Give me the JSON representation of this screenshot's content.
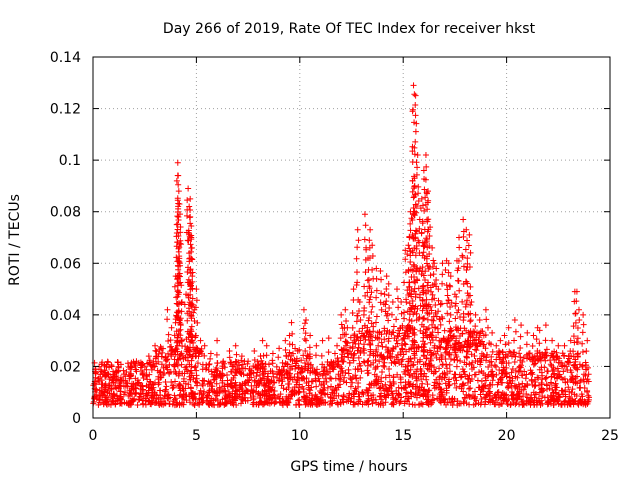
{
  "chart_data": {
    "type": "scatter",
    "title": "Day 266 of 2019, Rate Of TEC Index for receiver hkst",
    "xlabel": "GPS time / hours",
    "ylabel": "ROTI / TECUs",
    "xlim": [
      0,
      25
    ],
    "ylim": [
      0,
      0.14
    ],
    "x_ticks": [
      0,
      5,
      10,
      15,
      20,
      25
    ],
    "x_tick_labels": [
      "0",
      "5",
      "10",
      "15",
      "20",
      "25"
    ],
    "y_ticks": [
      0,
      0.02,
      0.04,
      0.06,
      0.08,
      0.1,
      0.12,
      0.14
    ],
    "y_tick_labels": [
      "0",
      "0.02",
      "0.04",
      "0.06",
      "0.08",
      "0.1",
      "0.12",
      "0.14"
    ],
    "grid": true,
    "marker": "+",
    "color": "#ff0000",
    "series": [
      {
        "name": "ROTI",
        "x": [
          0.1,
          0.3,
          0.6,
          0.9,
          1.2,
          1.5,
          1.8,
          2.1,
          2.4,
          2.7,
          3.0,
          3.3,
          3.6,
          3.8,
          4.0,
          4.05,
          4.1,
          4.15,
          4.2,
          4.3,
          4.5,
          4.6,
          4.7,
          4.75,
          4.8,
          4.9,
          5.0,
          5.2,
          5.4,
          5.7,
          6.0,
          6.3,
          6.6,
          6.9,
          7.2,
          7.5,
          7.8,
          8.1,
          8.4,
          8.7,
          9.0,
          9.3,
          9.6,
          9.9,
          10.2,
          10.5,
          10.8,
          11.1,
          11.4,
          11.7,
          12.0,
          12.3,
          12.6,
          12.9,
          13.1,
          13.3,
          13.5,
          13.7,
          13.9,
          14.1,
          14.3,
          14.5,
          14.7,
          14.9,
          15.1,
          15.3,
          15.45,
          15.5,
          15.6,
          15.7,
          15.8,
          15.9,
          16.0,
          16.1,
          16.2,
          16.3,
          16.5,
          16.7,
          16.9,
          17.1,
          17.3,
          17.5,
          17.7,
          17.9,
          18.1,
          18.3,
          18.5,
          18.7,
          18.9,
          19.1,
          19.3,
          19.5,
          19.7,
          19.9,
          20.1,
          20.4,
          20.7,
          21.0,
          21.3,
          21.6,
          21.9,
          22.2,
          22.5,
          22.8,
          23.1,
          23.3,
          23.5,
          23.7,
          23.9,
          4.12,
          4.18,
          4.22,
          4.65,
          4.7,
          4.78,
          8.2,
          9.5,
          10.3,
          11.8,
          12.2,
          12.8,
          13.15,
          13.4,
          14.2,
          15.25,
          15.35,
          15.55,
          15.95,
          16.15,
          16.4,
          16.6,
          16.8,
          17.2,
          17.6,
          18.05,
          18.2,
          19.0,
          21.5,
          23.4
        ],
        "y": [
          0.018,
          0.014,
          0.016,
          0.02,
          0.015,
          0.017,
          0.019,
          0.022,
          0.021,
          0.024,
          0.028,
          0.027,
          0.042,
          0.035,
          0.055,
          0.075,
          0.099,
          0.088,
          0.06,
          0.045,
          0.048,
          0.089,
          0.085,
          0.07,
          0.055,
          0.042,
          0.05,
          0.03,
          0.028,
          0.025,
          0.03,
          0.022,
          0.026,
          0.028,
          0.024,
          0.022,
          0.026,
          0.024,
          0.028,
          0.025,
          0.027,
          0.03,
          0.037,
          0.026,
          0.042,
          0.032,
          0.028,
          0.03,
          0.031,
          0.025,
          0.04,
          0.035,
          0.05,
          0.045,
          0.04,
          0.062,
          0.067,
          0.058,
          0.057,
          0.048,
          0.052,
          0.045,
          0.05,
          0.045,
          0.065,
          0.07,
          0.092,
          0.129,
          0.125,
          0.102,
          0.077,
          0.085,
          0.096,
          0.102,
          0.088,
          0.074,
          0.06,
          0.05,
          0.06,
          0.061,
          0.055,
          0.048,
          0.07,
          0.077,
          0.062,
          0.045,
          0.04,
          0.038,
          0.032,
          0.035,
          0.033,
          0.028,
          0.03,
          0.032,
          0.035,
          0.038,
          0.036,
          0.033,
          0.032,
          0.034,
          0.036,
          0.03,
          0.028,
          0.028,
          0.03,
          0.049,
          0.042,
          0.04,
          0.03,
          0.094,
          0.083,
          0.072,
          0.082,
          0.078,
          0.066,
          0.03,
          0.032,
          0.038,
          0.028,
          0.042,
          0.073,
          0.079,
          0.073,
          0.055,
          0.067,
          0.08,
          0.093,
          0.068,
          0.087,
          0.066,
          0.058,
          0.044,
          0.06,
          0.061,
          0.073,
          0.071,
          0.042,
          0.035,
          0.049
        ]
      }
    ],
    "background_band": {
      "description_note": "dense baseline of points filling roughly 0.005 to 0.02 across all hours",
      "y_min": 0.005,
      "y_max": 0.022,
      "x_min": 0,
      "x_max": 24
    }
  }
}
